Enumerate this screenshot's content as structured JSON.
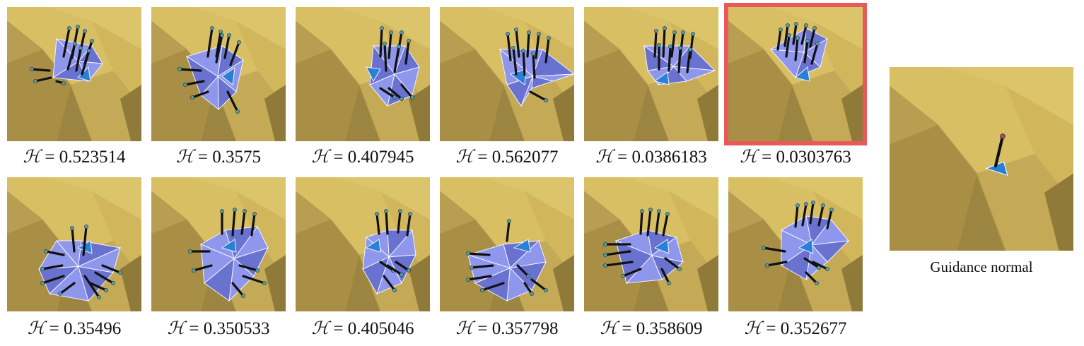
{
  "figure": {
    "panels": [
      {
        "h_symbol": "ℋ",
        "value": "0.523514",
        "selected": false
      },
      {
        "h_symbol": "ℋ",
        "value": "0.3575",
        "selected": false
      },
      {
        "h_symbol": "ℋ",
        "value": "0.407945",
        "selected": false
      },
      {
        "h_symbol": "ℋ",
        "value": "0.562077",
        "selected": false
      },
      {
        "h_symbol": "ℋ",
        "value": "0.0386183",
        "selected": false
      },
      {
        "h_symbol": "ℋ",
        "value": "0.0303763",
        "selected": true
      },
      {
        "h_symbol": "ℋ",
        "value": "0.35496",
        "selected": false
      },
      {
        "h_symbol": "ℋ",
        "value": "0.350533",
        "selected": false
      },
      {
        "h_symbol": "ℋ",
        "value": "0.405046",
        "selected": false
      },
      {
        "h_symbol": "ℋ",
        "value": "0.357798",
        "selected": false
      },
      {
        "h_symbol": "ℋ",
        "value": "0.358609",
        "selected": false
      },
      {
        "h_symbol": "ℋ",
        "value": "0.352677",
        "selected": false
      }
    ],
    "guidance_caption": "Guidance normal",
    "colors": {
      "surface_light": "#d9bf63",
      "surface_dark": "#8f7a3a",
      "patch": "#8f97ec",
      "patch_dark": "#6a72cf",
      "center_face": "#2a7fd6",
      "selection_border": "#e85a5a",
      "normal_tip": "#4fa3a3",
      "guidance_tip": "#a0505a"
    }
  }
}
